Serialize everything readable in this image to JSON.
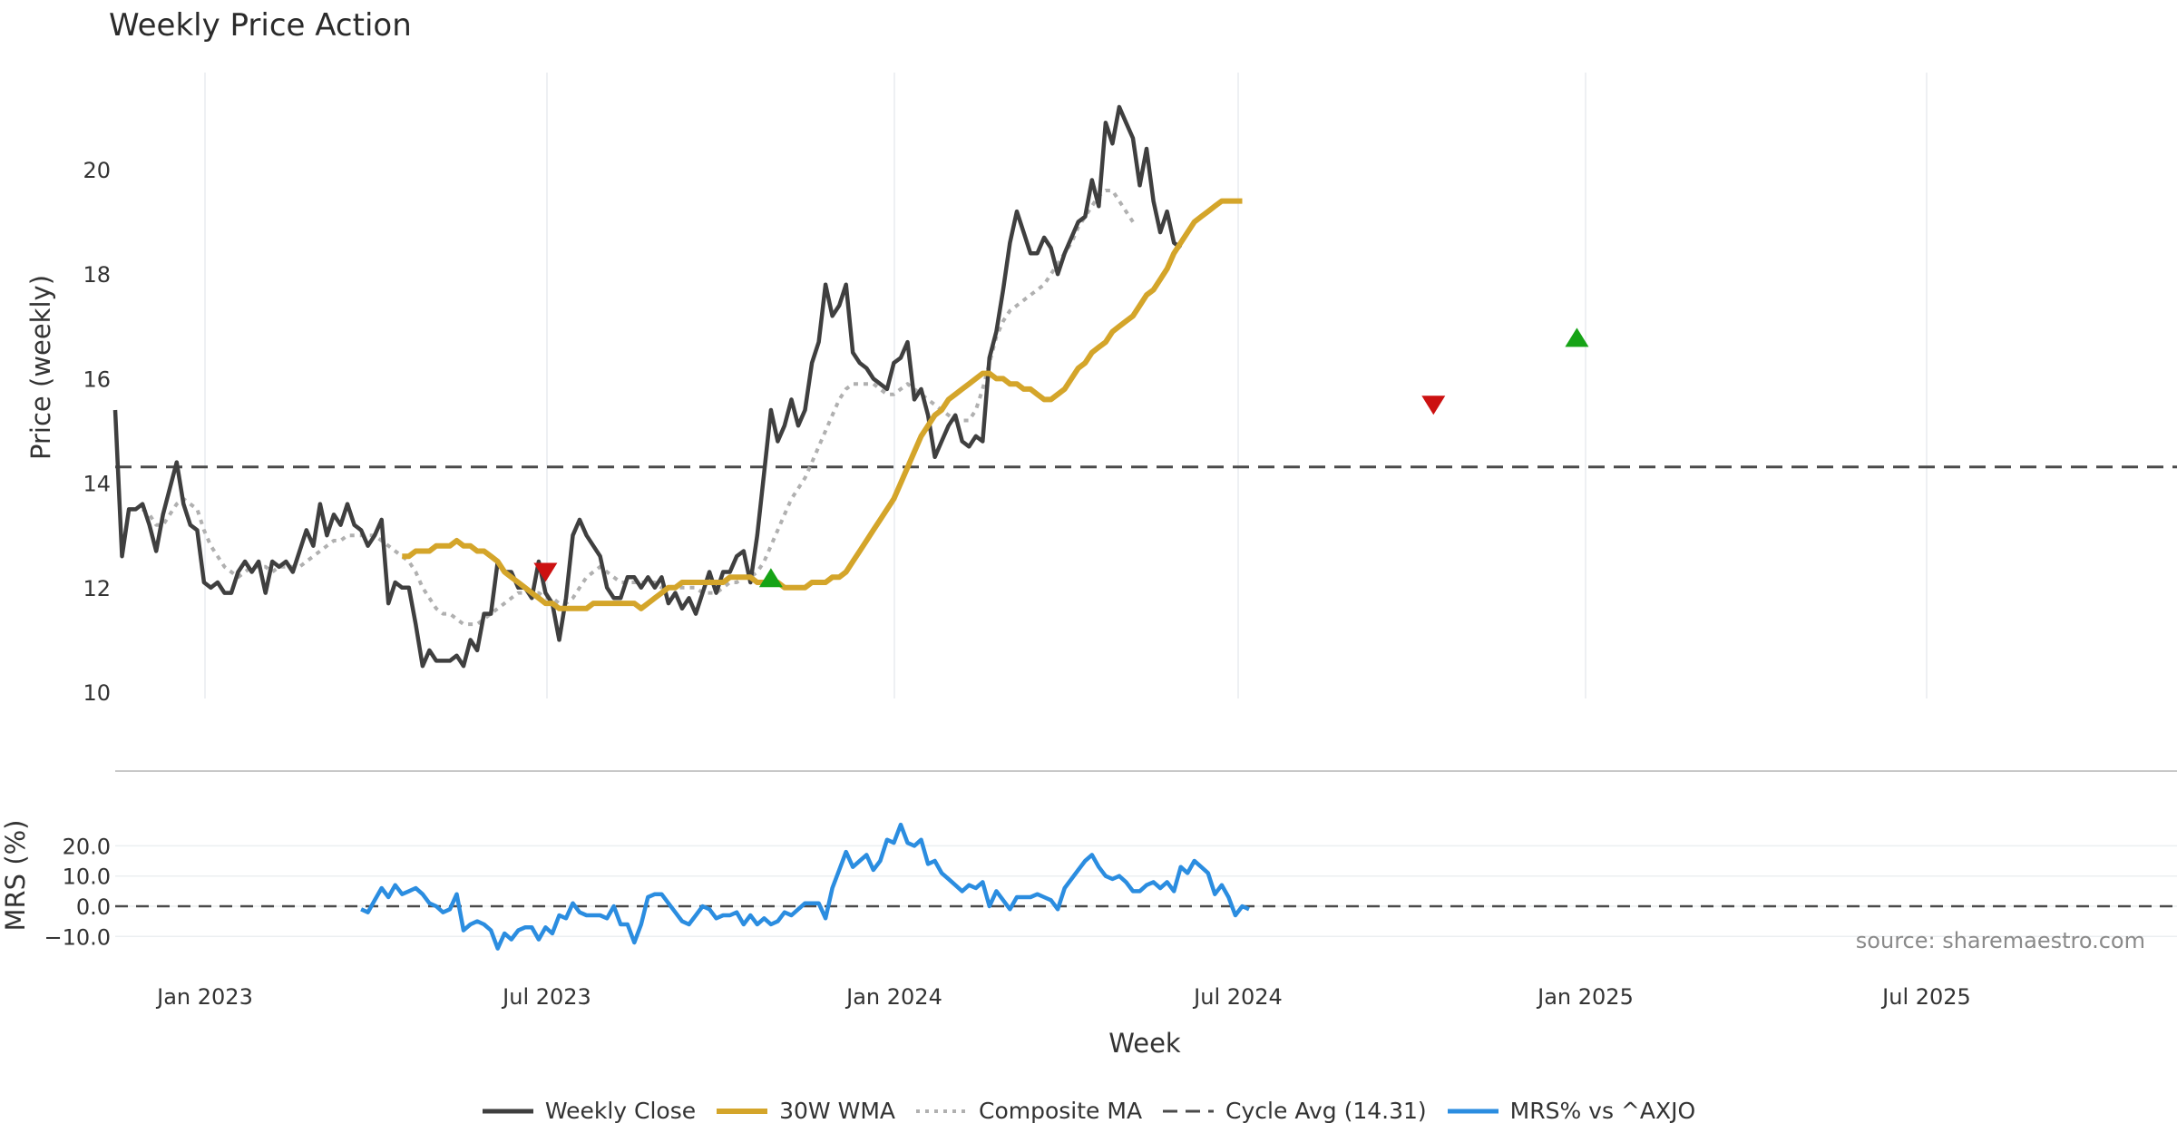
{
  "chart_data": {
    "title": "Weekly Price Action",
    "source": "source: sharemaestro.com",
    "xlabel": "Week",
    "x_ticks": [
      "Jan 2023",
      "Jul 2023",
      "Jan 2024",
      "Jul 2024",
      "Jan 2025",
      "Jul 2025"
    ],
    "price_panel": {
      "type": "line",
      "ylabel": "Price (weekly)",
      "ylim": [
        10,
        21.8
      ],
      "y_ticks": [
        "10",
        "12",
        "14",
        "16",
        "18",
        "20"
      ],
      "series": [
        {
          "name": "Weekly Close",
          "color": "#3f3f3f",
          "values": [
            15.4,
            12.6,
            13.5,
            13.5,
            13.6,
            13.2,
            12.7,
            13.4,
            13.9,
            14.4,
            13.6,
            13.2,
            13.1,
            12.1,
            12.0,
            12.1,
            11.9,
            11.9,
            12.3,
            12.5,
            12.3,
            12.5,
            11.9,
            12.5,
            12.4,
            12.5,
            12.3,
            12.7,
            13.1,
            12.8,
            13.6,
            13.0,
            13.4,
            13.2,
            13.6,
            13.2,
            13.1,
            12.8,
            13.0,
            13.3,
            11.7,
            12.1,
            12.0,
            12.0,
            11.3,
            10.5,
            10.8,
            10.6,
            10.6,
            10.6,
            10.7,
            10.5,
            11.0,
            10.8,
            11.5,
            11.5,
            12.5,
            12.3,
            12.3,
            12.0,
            12.0,
            11.8,
            12.5,
            11.9,
            11.7,
            11.0,
            11.8,
            13.0,
            13.3,
            13.0,
            12.8,
            12.6,
            12.0,
            11.8,
            11.8,
            12.2,
            12.2,
            12.0,
            12.2,
            12.0,
            12.2,
            11.7,
            11.9,
            11.6,
            11.8,
            11.5,
            11.9,
            12.3,
            11.9,
            12.3,
            12.3,
            12.6,
            12.7,
            12.1,
            13.0,
            14.2,
            15.4,
            14.8,
            15.1,
            15.6,
            15.1,
            15.4,
            16.3,
            16.7,
            17.8,
            17.2,
            17.4,
            17.8,
            16.5,
            16.3,
            16.2,
            16.0,
            15.9,
            15.8,
            16.3,
            16.4,
            16.7,
            15.6,
            15.8,
            15.3,
            14.5,
            14.8,
            15.1,
            15.3,
            14.8,
            14.7,
            14.9,
            14.8,
            16.4,
            16.9,
            17.7,
            18.6,
            19.2,
            18.8,
            18.4,
            18.4,
            18.7,
            18.5,
            18.0,
            18.4,
            18.7,
            19.0,
            19.1,
            19.8,
            19.3,
            20.9,
            20.5,
            21.2,
            20.9,
            20.6,
            19.7,
            20.4,
            19.4,
            18.8,
            19.2,
            18.6,
            18.5
          ]
        },
        {
          "name": "30W WMA",
          "color": "#d4a52a",
          "start_week": 42,
          "values": [
            12.6,
            12.6,
            12.7,
            12.7,
            12.7,
            12.8,
            12.8,
            12.8,
            12.9,
            12.8,
            12.8,
            12.7,
            12.7,
            12.6,
            12.5,
            12.3,
            12.2,
            12.1,
            12.0,
            11.9,
            11.8,
            11.7,
            11.7,
            11.6,
            11.6,
            11.6,
            11.6,
            11.6,
            11.7,
            11.7,
            11.7,
            11.7,
            11.7,
            11.7,
            11.7,
            11.6,
            11.7,
            11.8,
            11.9,
            12.0,
            12.0,
            12.1,
            12.1,
            12.1,
            12.1,
            12.1,
            12.1,
            12.1,
            12.2,
            12.2,
            12.2,
            12.2,
            12.1,
            12.1,
            12.1,
            12.1,
            12.0,
            12.0,
            12.0,
            12.0,
            12.1,
            12.1,
            12.1,
            12.2,
            12.2,
            12.3,
            12.5,
            12.7,
            12.9,
            13.1,
            13.3,
            13.5,
            13.7,
            14.0,
            14.3,
            14.6,
            14.9,
            15.1,
            15.3,
            15.4,
            15.6,
            15.7,
            15.8,
            15.9,
            16.0,
            16.1,
            16.1,
            16.0,
            16.0,
            15.9,
            15.9,
            15.8,
            15.8,
            15.7,
            15.6,
            15.6,
            15.7,
            15.8,
            16.0,
            16.2,
            16.3,
            16.5,
            16.6,
            16.7,
            16.9,
            17.0,
            17.1,
            17.2,
            17.4,
            17.6,
            17.7,
            17.9,
            18.1,
            18.4,
            18.6,
            18.8,
            19.0,
            19.1,
            19.2,
            19.3,
            19.4,
            19.4,
            19.4,
            19.4
          ]
        },
        {
          "name": "Composite MA",
          "color": "#b0b0b0",
          "start_week": 4,
          "values": [
            13.5,
            13.4,
            13.2,
            13.2,
            13.4,
            13.6,
            13.7,
            13.6,
            13.5,
            13.1,
            12.8,
            12.6,
            12.4,
            12.3,
            12.2,
            12.3,
            12.4,
            12.4,
            12.4,
            12.3,
            12.4,
            12.4,
            12.4,
            12.4,
            12.5,
            12.6,
            12.7,
            12.8,
            12.9,
            12.9,
            13.0,
            13.0,
            13.0,
            13.0,
            13.0,
            12.9,
            12.8,
            12.7,
            12.6,
            12.5,
            12.3,
            12.0,
            11.8,
            11.6,
            11.5,
            11.5,
            11.4,
            11.3,
            11.3,
            11.3,
            11.4,
            11.5,
            11.6,
            11.7,
            11.8,
            11.9,
            11.9,
            11.9,
            11.9,
            11.8,
            11.8,
            11.7,
            11.7,
            11.8,
            12.0,
            12.2,
            12.3,
            12.4,
            12.3,
            12.2,
            12.1,
            12.1,
            12.1,
            12.1,
            12.1,
            12.1,
            12.0,
            12.0,
            12.0,
            12.0,
            12.0,
            12.0,
            11.9,
            11.9,
            11.9,
            12.0,
            12.1,
            12.1,
            12.2,
            12.2,
            12.3,
            12.5,
            12.8,
            13.1,
            13.4,
            13.7,
            13.9,
            14.1,
            14.4,
            14.7,
            15.0,
            15.3,
            15.6,
            15.8,
            15.9,
            15.9,
            15.9,
            15.9,
            15.8,
            15.7,
            15.7,
            15.8,
            15.9,
            15.8,
            15.7,
            15.6,
            15.5,
            15.4,
            15.3,
            15.2,
            15.2,
            15.2,
            15.4,
            15.8,
            16.3,
            16.8,
            17.1,
            17.3,
            17.4,
            17.5,
            17.6,
            17.7,
            17.8,
            18.0,
            18.2,
            18.4,
            18.6,
            18.9,
            19.1,
            19.3,
            19.5,
            19.6,
            19.6,
            19.4,
            19.2,
            19.0
          ]
        },
        {
          "name": "Cycle Avg (14.31)",
          "color": "#4a4a4a",
          "value": 14.31
        }
      ],
      "signals": [
        {
          "type": "sell",
          "week": 63,
          "value": 12.3,
          "color": "#cc1111"
        },
        {
          "type": "buy",
          "week": 96,
          "value": 12.2,
          "color": "#16a316"
        },
        {
          "type": "sell",
          "week": 193,
          "value": 15.5,
          "color": "#cc1111"
        },
        {
          "type": "buy",
          "week": 214,
          "value": 16.8,
          "color": "#16a316"
        }
      ]
    },
    "mrs_panel": {
      "type": "line",
      "ylabel": "MRS (%)",
      "ylim": [
        -13,
        28
      ],
      "y_ticks": [
        "20.0",
        "10.0",
        "0.0",
        "−10.0"
      ],
      "zero_line": 0,
      "series": [
        {
          "name": "MRS% vs ^AXJO",
          "color": "#2b8de0",
          "start_week": 36,
          "values": [
            -1,
            -2,
            2,
            6,
            3,
            7,
            4,
            5,
            6,
            4,
            1,
            0,
            -2,
            -1,
            4,
            -8,
            -6,
            -5,
            -6,
            -8,
            -14,
            -9,
            -11,
            -8,
            -7,
            -7,
            -11,
            -7,
            -9,
            -3,
            -4,
            1,
            -2,
            -3,
            -3,
            -3,
            -4,
            0,
            -6,
            -6,
            -12,
            -6,
            3,
            4,
            4,
            1,
            -2,
            -5,
            -6,
            -3,
            0,
            -1,
            -4,
            -3,
            -3,
            -2,
            -6,
            -3,
            -6,
            -4,
            -6,
            -5,
            -2,
            -3,
            -1,
            1,
            1,
            1,
            -4,
            6,
            12,
            18,
            13,
            15,
            17,
            12,
            15,
            22,
            21,
            27,
            21,
            20,
            22,
            14,
            15,
            11,
            9,
            7,
            5,
            7,
            6,
            8,
            0,
            5,
            2,
            -1,
            3,
            3,
            3,
            4,
            3,
            2,
            -1,
            6,
            9,
            12,
            15,
            17,
            13,
            10,
            9,
            10,
            8,
            5,
            5,
            7,
            8,
            6,
            8,
            5,
            13,
            11,
            15,
            13,
            11,
            4,
            7,
            3,
            -3,
            0,
            -1
          ]
        }
      ]
    },
    "legend_placement": "bottom-center",
    "grid": true
  }
}
